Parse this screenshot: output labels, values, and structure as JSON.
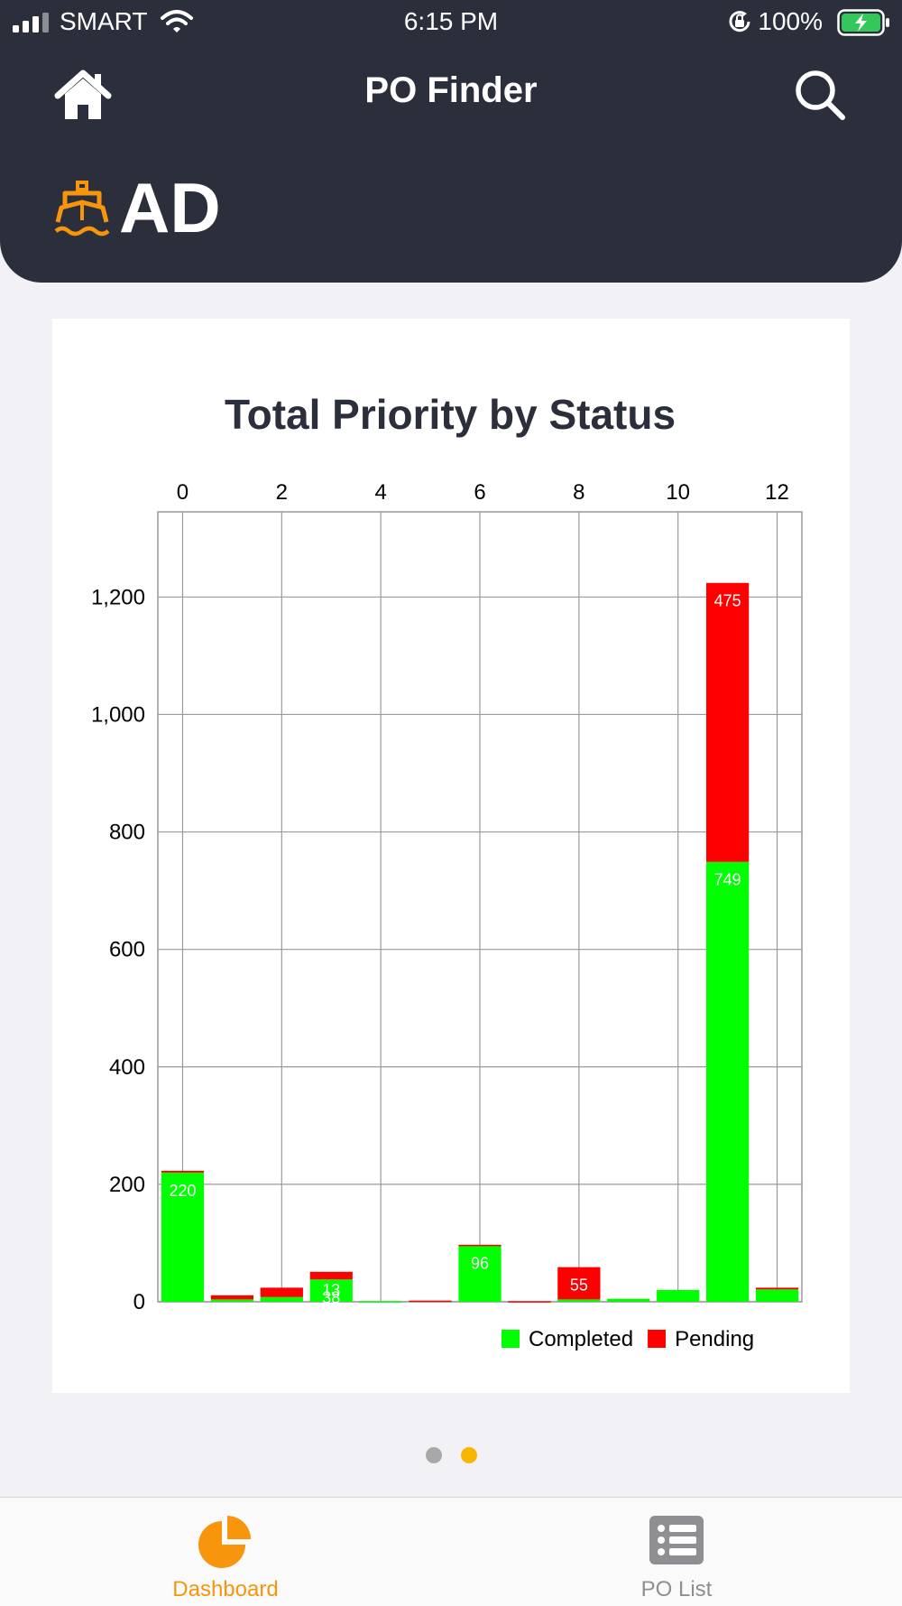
{
  "status_bar": {
    "carrier": "SMART",
    "time": "6:15 PM",
    "battery": "100%"
  },
  "header": {
    "title": "PO Finder",
    "section_code": "AD",
    "section_icon": "ship-icon",
    "home_icon": "home-icon",
    "search_icon": "search-icon"
  },
  "chart_data": {
    "type": "bar",
    "stacked": true,
    "title": "Total Priority by Status",
    "x_axis_position": "top",
    "x_ticks": [
      "0",
      "2",
      "4",
      "6",
      "8",
      "10",
      "12"
    ],
    "xlim": [
      -0.5,
      12.5
    ],
    "y_ticks": [
      "0",
      "200",
      "400",
      "600",
      "800",
      "1,000",
      "1,200"
    ],
    "ylim": [
      0,
      1345
    ],
    "grid": true,
    "legend_position": "bottom-right",
    "x": [
      0,
      1,
      2,
      3,
      4,
      5,
      6,
      7,
      8,
      9,
      10,
      11,
      12
    ],
    "series": [
      {
        "name": "Completed",
        "color": "#00ff00",
        "values": [
          220,
          4,
          8,
          38,
          1,
          0,
          96,
          0,
          4,
          5,
          20,
          749,
          21
        ],
        "labels": [
          "220",
          "",
          "",
          "38",
          "",
          "",
          "96",
          "",
          "",
          "",
          "",
          "749",
          ""
        ]
      },
      {
        "name": "Pending",
        "color": "#ff0000",
        "values": [
          3,
          7,
          16,
          13,
          0,
          2,
          1,
          1,
          55,
          0,
          0,
          475,
          3
        ],
        "labels": [
          "",
          "",
          "",
          "13",
          "",
          "",
          "",
          "",
          "55",
          "",
          "",
          "475",
          ""
        ]
      }
    ]
  },
  "pager": {
    "pages": 2,
    "active_page": 2,
    "active_color": "#f7b500"
  },
  "tabs": [
    {
      "label": "Dashboard",
      "icon": "pie-chart-icon",
      "selected": true,
      "color": "#f7950c"
    },
    {
      "label": "PO List",
      "icon": "list-icon",
      "selected": false,
      "color": "#8e8e93"
    }
  ]
}
